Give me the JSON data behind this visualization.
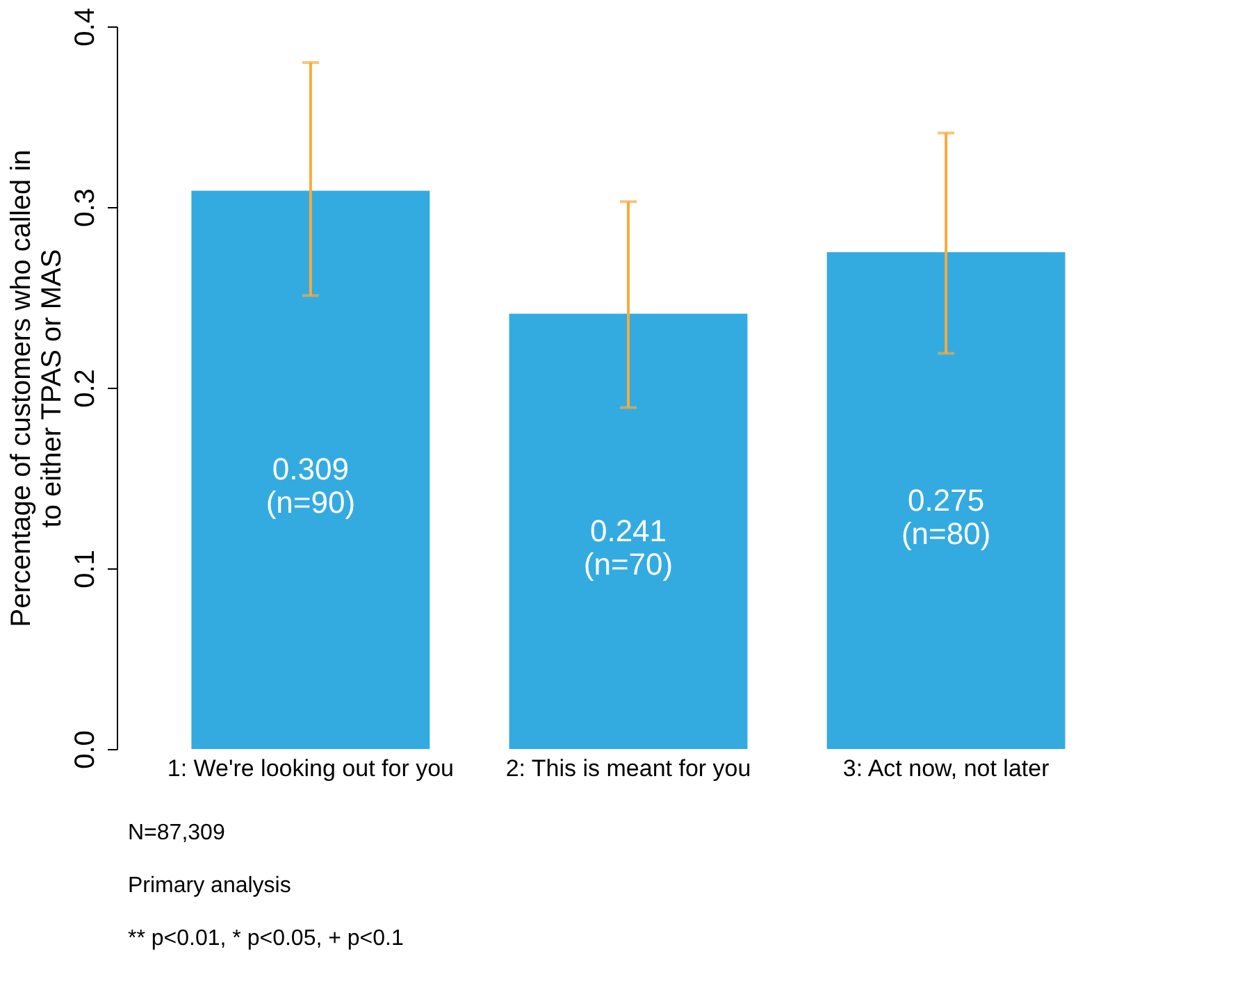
{
  "chart_data": {
    "type": "bar",
    "ylabel": "Percentage of customers who called in\nto either TPAS or MAS",
    "categories": [
      "1: We're looking out for you",
      "2: This is meant for you",
      "3: Act now, not later"
    ],
    "values": [
      0.309,
      0.241,
      0.275
    ],
    "color": "#33abe1",
    "errors": [
      [
        0.251,
        0.38
      ],
      [
        0.189,
        0.303
      ],
      [
        0.219,
        0.341
      ]
    ],
    "value_labels": [
      "0.309\n(n=90)",
      "0.241\n(n=70)",
      "0.275\n(n=80)"
    ],
    "ylim": [
      0,
      0.4
    ],
    "yticks": [
      {
        "value": 0,
        "label": "0.0"
      },
      0.1,
      0.2,
      0.3,
      0.4
    ],
    "grid": false,
    "annotations": [
      "N=87,309",
      "Primary analysis",
      "** p<0.01, * p<0.05, + p<0.1"
    ]
  }
}
